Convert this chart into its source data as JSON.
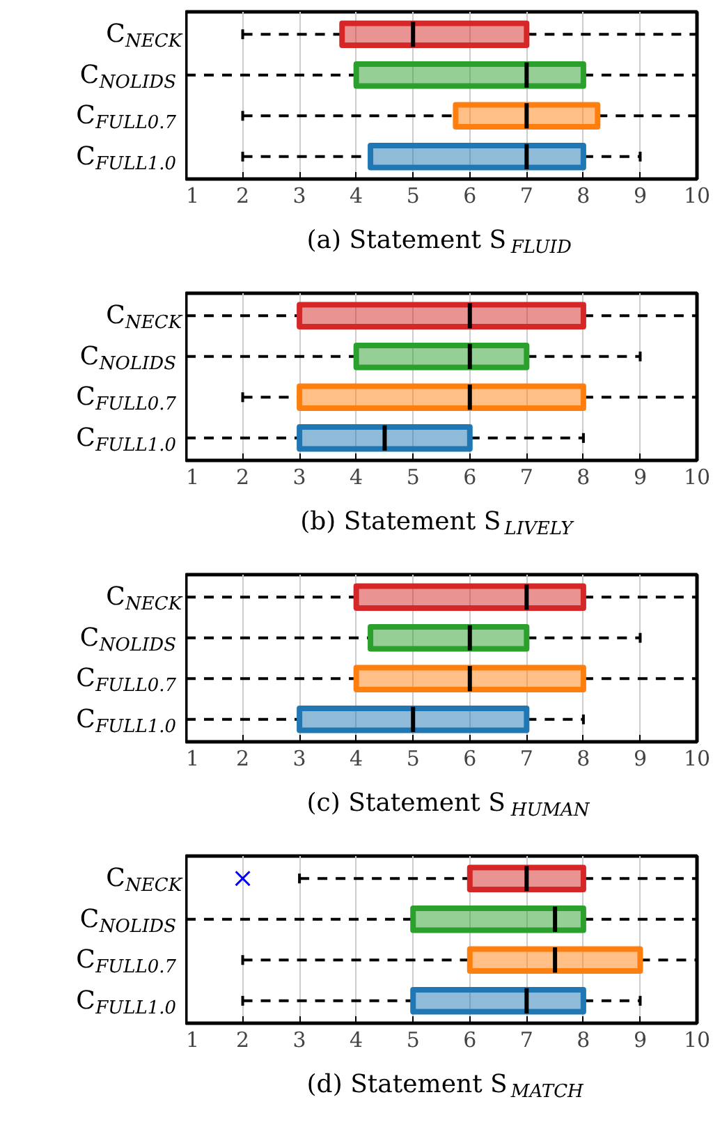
{
  "chart_data": [
    {
      "type": "box",
      "orientation": "horizontal",
      "categories": [
        "C$_{NECK}$",
        "C$_{NOLIDS}$",
        "C$_{FULL0.7}$",
        "C$_{FULL1.0}$"
      ],
      "colors": [
        "#d62728",
        "#2ca02c",
        "#ff7f0e",
        "#1f77b4"
      ],
      "xlim": [
        1,
        10
      ],
      "xticks": [
        1,
        2,
        3,
        4,
        5,
        6,
        7,
        8,
        9,
        10
      ],
      "grid": "x",
      "xlabel": "(a) Statement S$_{FLUID}$",
      "boxes": [
        {
          "low": 2,
          "q1": 3.75,
          "median": 5,
          "q3": 7,
          "high": 10
        },
        {
          "low": 1,
          "q1": 4,
          "median": 7,
          "q3": 8,
          "high": 10
        },
        {
          "low": 2,
          "q1": 5.75,
          "median": 7,
          "q3": 8.25,
          "high": 10
        },
        {
          "low": 2,
          "q1": 4.25,
          "median": 7,
          "q3": 8,
          "high": 9
        }
      ]
    },
    {
      "type": "box",
      "orientation": "horizontal",
      "categories": [
        "C$_{NECK}$",
        "C$_{NOLIDS}$",
        "C$_{FULL0.7}$",
        "C$_{FULL1.0}$"
      ],
      "colors": [
        "#d62728",
        "#2ca02c",
        "#ff7f0e",
        "#1f77b4"
      ],
      "xlim": [
        1,
        10
      ],
      "xticks": [
        1,
        2,
        3,
        4,
        5,
        6,
        7,
        8,
        9,
        10
      ],
      "grid": "x",
      "xlabel": "(b) Statement S$_{LIVELY}$",
      "boxes": [
        {
          "low": 1,
          "q1": 3,
          "median": 6,
          "q3": 8,
          "high": 10
        },
        {
          "low": 1,
          "q1": 4,
          "median": 6,
          "q3": 7,
          "high": 9
        },
        {
          "low": 2,
          "q1": 3,
          "median": 6,
          "q3": 8,
          "high": 10
        },
        {
          "low": 1,
          "q1": 3,
          "median": 4.5,
          "q3": 6,
          "high": 8
        }
      ]
    },
    {
      "type": "box",
      "orientation": "horizontal",
      "categories": [
        "C$_{NECK}$",
        "C$_{NOLIDS}$",
        "C$_{FULL0.7}$",
        "C$_{FULL1.0}$"
      ],
      "colors": [
        "#d62728",
        "#2ca02c",
        "#ff7f0e",
        "#1f77b4"
      ],
      "xlim": [
        1,
        10
      ],
      "xticks": [
        1,
        2,
        3,
        4,
        5,
        6,
        7,
        8,
        9,
        10
      ],
      "grid": "x",
      "xlabel": "(c) Statement S$_{HUMAN}$",
      "boxes": [
        {
          "low": 1,
          "q1": 4,
          "median": 7,
          "q3": 8,
          "high": 10
        },
        {
          "low": 1,
          "q1": 4.25,
          "median": 6,
          "q3": 7,
          "high": 9
        },
        {
          "low": 1,
          "q1": 4,
          "median": 6,
          "q3": 8,
          "high": 10
        },
        {
          "low": 1,
          "q1": 3,
          "median": 5,
          "q3": 7,
          "high": 8
        }
      ]
    },
    {
      "type": "box",
      "orientation": "horizontal",
      "categories": [
        "C$_{NECK}$",
        "C$_{NOLIDS}$",
        "C$_{FULL0.7}$",
        "C$_{FULL1.0}$"
      ],
      "colors": [
        "#d62728",
        "#2ca02c",
        "#ff7f0e",
        "#1f77b4"
      ],
      "xlim": [
        1,
        10
      ],
      "xticks": [
        1,
        2,
        3,
        4,
        5,
        6,
        7,
        8,
        9,
        10
      ],
      "grid": "x",
      "xlabel": "(d) Statement S$_{MATCH}$",
      "boxes": [
        {
          "low": 3,
          "q1": 6,
          "median": 7,
          "q3": 8,
          "high": 10,
          "outliers": [
            2
          ]
        },
        {
          "low": 1,
          "q1": 5,
          "median": 7.5,
          "q3": 8,
          "high": 10
        },
        {
          "low": 2,
          "q1": 6,
          "median": 7.5,
          "q3": 9,
          "high": 10
        },
        {
          "low": 2,
          "q1": 5,
          "median": 7,
          "q3": 8,
          "high": 9
        }
      ]
    }
  ]
}
